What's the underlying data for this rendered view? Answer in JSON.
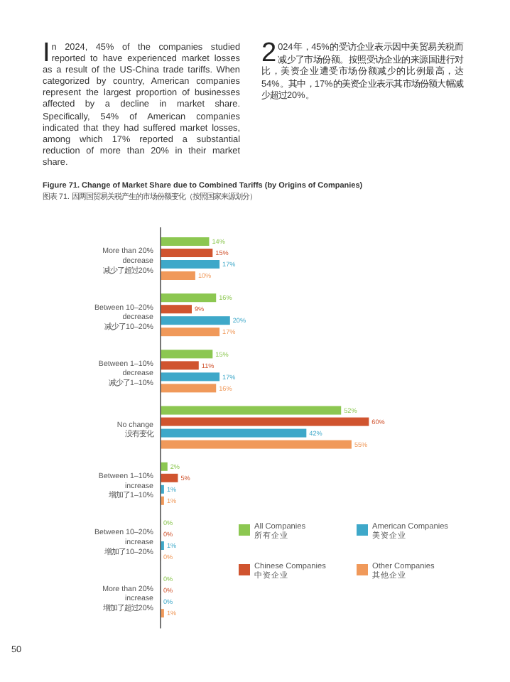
{
  "chart_data": {
    "type": "bar",
    "orientation": "horizontal",
    "title": "Figure 71. Change of Market Share due to Combined Tariffs (by Origins of Companies)",
    "subtitle": "图表 71. 因两国贸易关税产生的市场份额变化（按照国家来源划分）",
    "categories": [
      "More than 20%\ndecrease\n减少了超过20%",
      "Between 10–20%\ndecrease\n减少了10–20%",
      "Between 1–10%\ndecrease\n减少了1–10%",
      "No change\n没有变化",
      "Between 1–10%\nincrease\n增加了1–10%",
      "Between 10–20%\nincrease\n增加了10–20%",
      "More than 20%\nincrease\n增加了超过20%"
    ],
    "series": [
      {
        "name": "All Companies\n所有企业",
        "color": "#8cc751",
        "values": [
          14,
          16,
          15,
          52,
          2,
          0,
          0
        ],
        "value_labels": [
          "14%",
          "16%",
          "15%",
          "52%",
          "2%",
          "0%",
          "0%"
        ]
      },
      {
        "name": "Chinese Companies\n中资企业",
        "color": "#d0542f",
        "values": [
          15,
          9,
          11,
          60,
          5,
          0,
          0
        ],
        "value_labels": [
          "15%",
          "9%",
          "11%",
          "60%",
          "5%",
          "0%",
          "0%"
        ]
      },
      {
        "name": "American Companies\n美资企业",
        "color": "#3ea8c9",
        "values": [
          17,
          20,
          17,
          42,
          1,
          1,
          0
        ],
        "value_labels": [
          "17%",
          "20%",
          "17%",
          "42%",
          "1%",
          "1%",
          "0%"
        ]
      },
      {
        "name": "Other Companies\n其他企业",
        "color": "#f0995a",
        "values": [
          10,
          17,
          16,
          55,
          1,
          0,
          1
        ],
        "value_labels": [
          "10%",
          "17%",
          "16%",
          "55%",
          "1%",
          "0%",
          "1%"
        ]
      }
    ],
    "legend": "bottom right",
    "annotations": [
      "In 2024, 45% of the companies studied reported to have experienced market losses as a result of the US-China trade tariffs. When categorized by country, American companies represent the largest proportion of businesses affected by a decline in market share. Specifically, 54% of American companies indicated that they had suffered market losses, among which 17% reported a substantial reduction of more than 20% in their market share.",
      "2024年，45%的受访企业表示因中美贸易关税而减少了市场份额。按照受访企业的来源国进行对比，美资企业遭受市场份额减少的比例最高，达54%。其中，17%的美资企业表示其市场份额大幅减少超过20%。",
      "50"
    ]
  }
}
